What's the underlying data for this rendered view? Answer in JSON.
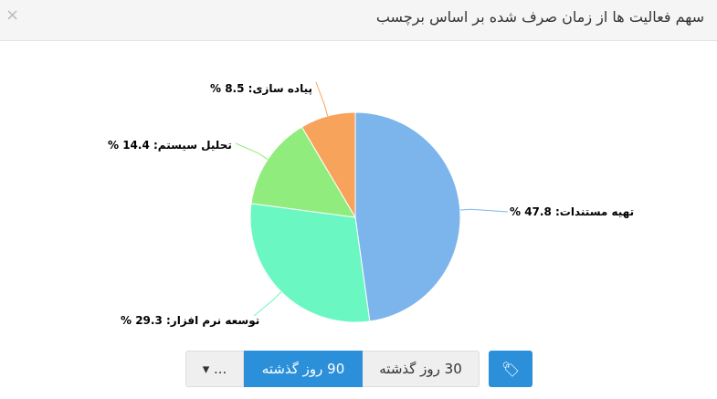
{
  "header": {
    "title": "سهم فعالیت ها از زمان صرف شده بر اساس برچسب",
    "close_icon": "close-icon"
  },
  "chart_data": {
    "type": "pie",
    "slices": [
      {
        "name": "تهیه مستندات",
        "value": 47.8,
        "color": "#7cb5ec",
        "label": "تهیه مستندات: 47.8 %"
      },
      {
        "name": "توسعه نرم افزار",
        "value": 29.3,
        "color": "#6af7c2",
        "label": "توسعه نرم افزار: 29.3 %"
      },
      {
        "name": "تحلیل سیستم",
        "value": 14.4,
        "color": "#90ed7d",
        "label": "تحلیل سیستم: 14.4 %"
      },
      {
        "name": "پیاده سازی",
        "value": 8.5,
        "color": "#f7a35c",
        "label": "پیاده سازی: 8.5 %"
      }
    ]
  },
  "controls": {
    "more_label": "... ▾",
    "range90_label": "90 روز گذشته",
    "range30_label": "30 روز گذشته",
    "tag_icon": "tag-icon",
    "active": "90 روز گذشته"
  }
}
